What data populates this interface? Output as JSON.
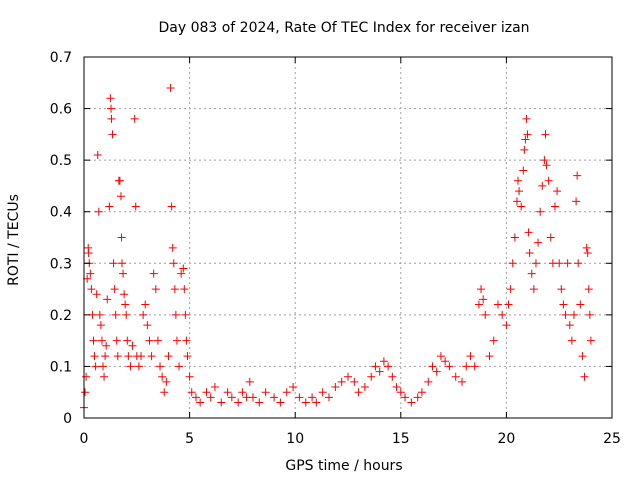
{
  "chart_data": {
    "type": "scatter",
    "title": "Day 083 of 2024, Rate Of TEC Index for receiver izan",
    "xlabel": "GPS time / hours",
    "ylabel": "ROTI / TECUs",
    "xlim": [
      0,
      25
    ],
    "ylim": [
      0,
      0.7
    ],
    "x_ticks": [
      0,
      5,
      10,
      15,
      20,
      25
    ],
    "x_tick_labels": [
      "0",
      "5",
      "10",
      "15",
      "20",
      "25"
    ],
    "y_ticks": [
      0,
      0.1,
      0.2,
      0.3,
      0.4,
      0.5,
      0.6,
      0.7
    ],
    "y_tick_labels": [
      "0",
      "0.1",
      "0.2",
      "0.3",
      "0.4",
      "0.5",
      "0.6",
      "0.7"
    ],
    "grid": true,
    "marker": "+",
    "color": "#ff0000",
    "series": [
      {
        "name": "ROTI",
        "points": [
          [
            0.0,
            0.02
          ],
          [
            0.05,
            0.05
          ],
          [
            0.1,
            0.08
          ],
          [
            0.15,
            0.27
          ],
          [
            0.2,
            0.33
          ],
          [
            0.22,
            0.32
          ],
          [
            0.25,
            0.3
          ],
          [
            0.3,
            0.28
          ],
          [
            0.35,
            0.25
          ],
          [
            0.4,
            0.2
          ],
          [
            0.45,
            0.15
          ],
          [
            0.5,
            0.12
          ],
          [
            0.55,
            0.1
          ],
          [
            0.6,
            0.24
          ],
          [
            0.65,
            0.51
          ],
          [
            0.7,
            0.4
          ],
          [
            0.75,
            0.2
          ],
          [
            0.8,
            0.18
          ],
          [
            0.85,
            0.15
          ],
          [
            0.9,
            0.1
          ],
          [
            0.95,
            0.08
          ],
          [
            1.0,
            0.12
          ],
          [
            1.05,
            0.14
          ],
          [
            1.1,
            0.23
          ],
          [
            1.2,
            0.41
          ],
          [
            1.25,
            0.62
          ],
          [
            1.28,
            0.6
          ],
          [
            1.3,
            0.58
          ],
          [
            1.35,
            0.55
          ],
          [
            1.4,
            0.3
          ],
          [
            1.45,
            0.25
          ],
          [
            1.5,
            0.2
          ],
          [
            1.55,
            0.15
          ],
          [
            1.6,
            0.12
          ],
          [
            1.65,
            0.46
          ],
          [
            1.7,
            0.46
          ],
          [
            1.75,
            0.43
          ],
          [
            1.78,
            0.35
          ],
          [
            1.8,
            0.3
          ],
          [
            1.85,
            0.28
          ],
          [
            1.9,
            0.24
          ],
          [
            1.95,
            0.22
          ],
          [
            2.0,
            0.2
          ],
          [
            2.05,
            0.15
          ],
          [
            2.1,
            0.12
          ],
          [
            2.2,
            0.1
          ],
          [
            2.3,
            0.14
          ],
          [
            2.4,
            0.58
          ],
          [
            2.45,
            0.41
          ],
          [
            2.5,
            0.12
          ],
          [
            2.6,
            0.1
          ],
          [
            2.7,
            0.12
          ],
          [
            2.8,
            0.2
          ],
          [
            2.9,
            0.22
          ],
          [
            3.0,
            0.18
          ],
          [
            3.1,
            0.15
          ],
          [
            3.2,
            0.12
          ],
          [
            3.3,
            0.28
          ],
          [
            3.4,
            0.25
          ],
          [
            3.5,
            0.15
          ],
          [
            3.6,
            0.1
          ],
          [
            3.7,
            0.08
          ],
          [
            3.8,
            0.05
          ],
          [
            3.9,
            0.07
          ],
          [
            4.0,
            0.12
          ],
          [
            4.1,
            0.64
          ],
          [
            4.15,
            0.41
          ],
          [
            4.2,
            0.33
          ],
          [
            4.25,
            0.3
          ],
          [
            4.3,
            0.25
          ],
          [
            4.35,
            0.2
          ],
          [
            4.4,
            0.15
          ],
          [
            4.5,
            0.1
          ],
          [
            4.6,
            0.28
          ],
          [
            4.7,
            0.29
          ],
          [
            4.75,
            0.25
          ],
          [
            4.8,
            0.2
          ],
          [
            4.85,
            0.15
          ],
          [
            4.9,
            0.12
          ],
          [
            5.0,
            0.08
          ],
          [
            5.1,
            0.05
          ],
          [
            5.3,
            0.04
          ],
          [
            5.5,
            0.03
          ],
          [
            5.8,
            0.05
          ],
          [
            6.0,
            0.04
          ],
          [
            6.2,
            0.06
          ],
          [
            6.5,
            0.03
          ],
          [
            6.8,
            0.05
          ],
          [
            7.0,
            0.04
          ],
          [
            7.3,
            0.03
          ],
          [
            7.5,
            0.05
          ],
          [
            7.7,
            0.04
          ],
          [
            7.85,
            0.07
          ],
          [
            8.0,
            0.04
          ],
          [
            8.3,
            0.03
          ],
          [
            8.6,
            0.05
          ],
          [
            9.0,
            0.04
          ],
          [
            9.3,
            0.03
          ],
          [
            9.6,
            0.05
          ],
          [
            9.9,
            0.06
          ],
          [
            10.2,
            0.04
          ],
          [
            10.5,
            0.03
          ],
          [
            10.8,
            0.04
          ],
          [
            11.0,
            0.03
          ],
          [
            11.3,
            0.05
          ],
          [
            11.6,
            0.04
          ],
          [
            11.9,
            0.06
          ],
          [
            12.2,
            0.07
          ],
          [
            12.5,
            0.08
          ],
          [
            12.8,
            0.07
          ],
          [
            13.0,
            0.05
          ],
          [
            13.3,
            0.06
          ],
          [
            13.6,
            0.08
          ],
          [
            13.8,
            0.1
          ],
          [
            14.0,
            0.09
          ],
          [
            14.2,
            0.11
          ],
          [
            14.4,
            0.1
          ],
          [
            14.6,
            0.08
          ],
          [
            14.8,
            0.06
          ],
          [
            15.0,
            0.05
          ],
          [
            15.2,
            0.04
          ],
          [
            15.5,
            0.03
          ],
          [
            15.8,
            0.04
          ],
          [
            16.0,
            0.05
          ],
          [
            16.3,
            0.07
          ],
          [
            16.5,
            0.1
          ],
          [
            16.7,
            0.09
          ],
          [
            16.9,
            0.12
          ],
          [
            17.1,
            0.11
          ],
          [
            17.3,
            0.1
          ],
          [
            17.6,
            0.08
          ],
          [
            17.9,
            0.07
          ],
          [
            18.1,
            0.1
          ],
          [
            18.3,
            0.12
          ],
          [
            18.5,
            0.1
          ],
          [
            18.7,
            0.22
          ],
          [
            18.8,
            0.25
          ],
          [
            18.9,
            0.23
          ],
          [
            19.0,
            0.2
          ],
          [
            19.2,
            0.12
          ],
          [
            19.4,
            0.15
          ],
          [
            19.6,
            0.22
          ],
          [
            19.8,
            0.2
          ],
          [
            20.0,
            0.18
          ],
          [
            20.1,
            0.22
          ],
          [
            20.2,
            0.25
          ],
          [
            20.3,
            0.3
          ],
          [
            20.4,
            0.35
          ],
          [
            20.5,
            0.42
          ],
          [
            20.55,
            0.46
          ],
          [
            20.6,
            0.44
          ],
          [
            20.7,
            0.41
          ],
          [
            20.8,
            0.48
          ],
          [
            20.85,
            0.52
          ],
          [
            20.9,
            0.54
          ],
          [
            20.95,
            0.58
          ],
          [
            21.0,
            0.55
          ],
          [
            21.05,
            0.36
          ],
          [
            21.1,
            0.32
          ],
          [
            21.2,
            0.28
          ],
          [
            21.3,
            0.25
          ],
          [
            21.4,
            0.3
          ],
          [
            21.5,
            0.34
          ],
          [
            21.6,
            0.4
          ],
          [
            21.7,
            0.45
          ],
          [
            21.8,
            0.5
          ],
          [
            21.85,
            0.55
          ],
          [
            21.9,
            0.49
          ],
          [
            22.0,
            0.46
          ],
          [
            22.1,
            0.35
          ],
          [
            22.2,
            0.3
          ],
          [
            22.3,
            0.41
          ],
          [
            22.4,
            0.44
          ],
          [
            22.5,
            0.3
          ],
          [
            22.6,
            0.25
          ],
          [
            22.7,
            0.22
          ],
          [
            22.8,
            0.2
          ],
          [
            22.9,
            0.3
          ],
          [
            23.0,
            0.18
          ],
          [
            23.1,
            0.15
          ],
          [
            23.2,
            0.2
          ],
          [
            23.3,
            0.42
          ],
          [
            23.35,
            0.47
          ],
          [
            23.4,
            0.3
          ],
          [
            23.5,
            0.22
          ],
          [
            23.6,
            0.12
          ],
          [
            23.7,
            0.08
          ],
          [
            23.8,
            0.33
          ],
          [
            23.85,
            0.32
          ],
          [
            23.9,
            0.25
          ],
          [
            23.95,
            0.2
          ],
          [
            24.0,
            0.15
          ]
        ]
      }
    ]
  }
}
